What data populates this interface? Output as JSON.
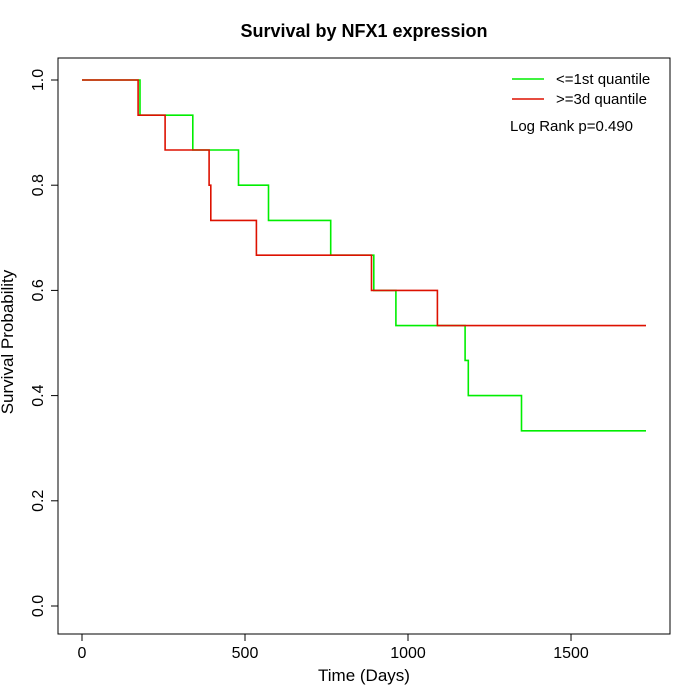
{
  "chart_data": {
    "type": "line",
    "title": "Survival by NFX1 expression",
    "xlabel": "Time (Days)",
    "ylabel": "Survival Probability",
    "xlim": [
      0,
      1730
    ],
    "ylim": [
      0,
      1
    ],
    "x_ticks": [
      0,
      500,
      1000,
      1500
    ],
    "x_tick_labels": [
      "0",
      "500",
      "1000",
      "1500"
    ],
    "y_ticks": [
      0,
      0.2,
      0.4,
      0.6,
      0.8,
      1.0
    ],
    "y_tick_labels": [
      "0.0",
      "0.2",
      "0.4",
      "0.6",
      "0.8",
      "1.0"
    ],
    "legend_position": "top-right",
    "annotation": "Log Rank p=0.490",
    "step": true,
    "series": [
      {
        "name": "<=1st quantile",
        "color": "#00ee00",
        "points": [
          [
            0,
            1.0
          ],
          [
            178,
            1.0
          ],
          [
            178,
            0.933
          ],
          [
            340,
            0.933
          ],
          [
            340,
            0.867
          ],
          [
            480,
            0.867
          ],
          [
            480,
            0.8
          ],
          [
            572,
            0.8
          ],
          [
            572,
            0.733
          ],
          [
            763,
            0.733
          ],
          [
            763,
            0.667
          ],
          [
            895,
            0.667
          ],
          [
            895,
            0.6
          ],
          [
            963,
            0.6
          ],
          [
            963,
            0.533
          ],
          [
            1175,
            0.533
          ],
          [
            1175,
            0.467
          ],
          [
            1185,
            0.467
          ],
          [
            1185,
            0.4
          ],
          [
            1348,
            0.4
          ],
          [
            1348,
            0.333
          ],
          [
            1730,
            0.333
          ]
        ]
      },
      {
        "name": ">=3d quantile",
        "color": "#dd1100",
        "points": [
          [
            0,
            1.0
          ],
          [
            172,
            1.0
          ],
          [
            172,
            0.933
          ],
          [
            255,
            0.933
          ],
          [
            255,
            0.867
          ],
          [
            390,
            0.867
          ],
          [
            390,
            0.8
          ],
          [
            395,
            0.8
          ],
          [
            395,
            0.733
          ],
          [
            535,
            0.733
          ],
          [
            535,
            0.667
          ],
          [
            888,
            0.667
          ],
          [
            888,
            0.6
          ],
          [
            1090,
            0.6
          ],
          [
            1090,
            0.533
          ],
          [
            1730,
            0.533
          ]
        ]
      }
    ]
  }
}
